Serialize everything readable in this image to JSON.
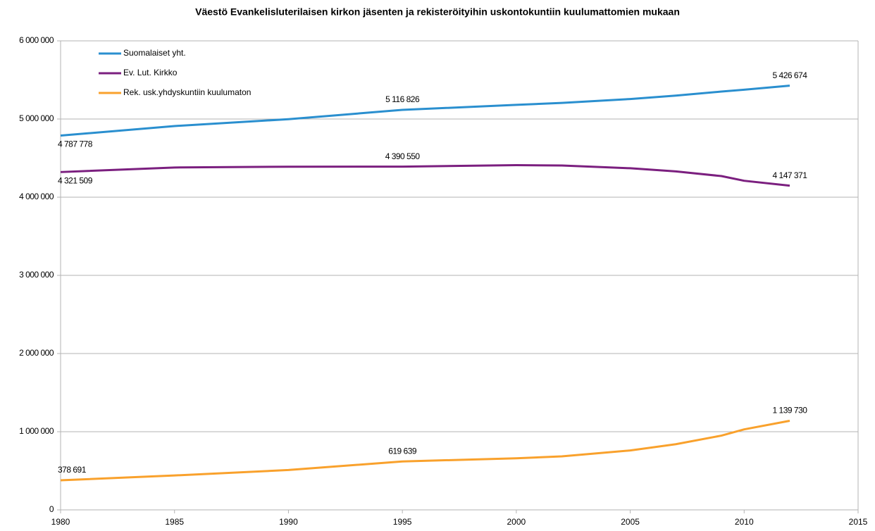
{
  "chart_data": {
    "type": "line",
    "title": "Väestö Evankelisluterilaisen kirkon jäsenten ja rekisteröityihin uskontokuntiin kuulumattomien mukaan",
    "x": [
      1980,
      1985,
      1990,
      1995,
      2000,
      2002,
      2005,
      2007,
      2009,
      2010,
      2012
    ],
    "series": [
      {
        "name": "Suomalaiset yht.",
        "color": "#2a8fcf",
        "values": [
          4787778,
          4910000,
          4998000,
          5116826,
          5181000,
          5206000,
          5256000,
          5300000,
          5351000,
          5375000,
          5426674
        ],
        "value_labels": [
          "4 787 778",
          null,
          null,
          "5 116 826",
          null,
          null,
          null,
          null,
          null,
          null,
          "5 426 674"
        ]
      },
      {
        "name": "Ev. Lut. Kirkko",
        "color": "#7b1f7f",
        "values": [
          4321509,
          4380000,
          4390000,
          4390550,
          4410000,
          4405000,
          4370000,
          4330000,
          4270000,
          4210000,
          4147371
        ],
        "value_labels": [
          "4 321 509",
          null,
          null,
          "4 390 550",
          null,
          null,
          null,
          null,
          null,
          null,
          "4 147 371"
        ]
      },
      {
        "name": "Rek. usk.yhdyskuntiin kuulumaton",
        "color": "#f9a12c",
        "values": [
          378691,
          440000,
          510000,
          619639,
          660000,
          685000,
          760000,
          840000,
          950000,
          1030000,
          1139730
        ],
        "value_labels": [
          "378 691",
          null,
          null,
          "619 639",
          null,
          null,
          null,
          null,
          null,
          null,
          "1 139 730"
        ]
      }
    ],
    "xlim": [
      1980,
      2015
    ],
    "xticks": [
      1980,
      1985,
      1990,
      1995,
      2000,
      2005,
      2010,
      2015
    ],
    "ylim": [
      0,
      6000000
    ],
    "yticks": [
      0,
      {
        "value": 1000000,
        "label": "1 000 000"
      },
      {
        "value": 2000000,
        "label": "2 000 000"
      },
      {
        "value": 3000000,
        "label": "3 000 000"
      },
      {
        "value": 4000000,
        "label": "4 000 000"
      },
      {
        "value": 5000000,
        "label": "5 000 000"
      },
      {
        "value": 6000000,
        "label": "6 000 000"
      }
    ],
    "grid": true,
    "legend": "upper left"
  }
}
